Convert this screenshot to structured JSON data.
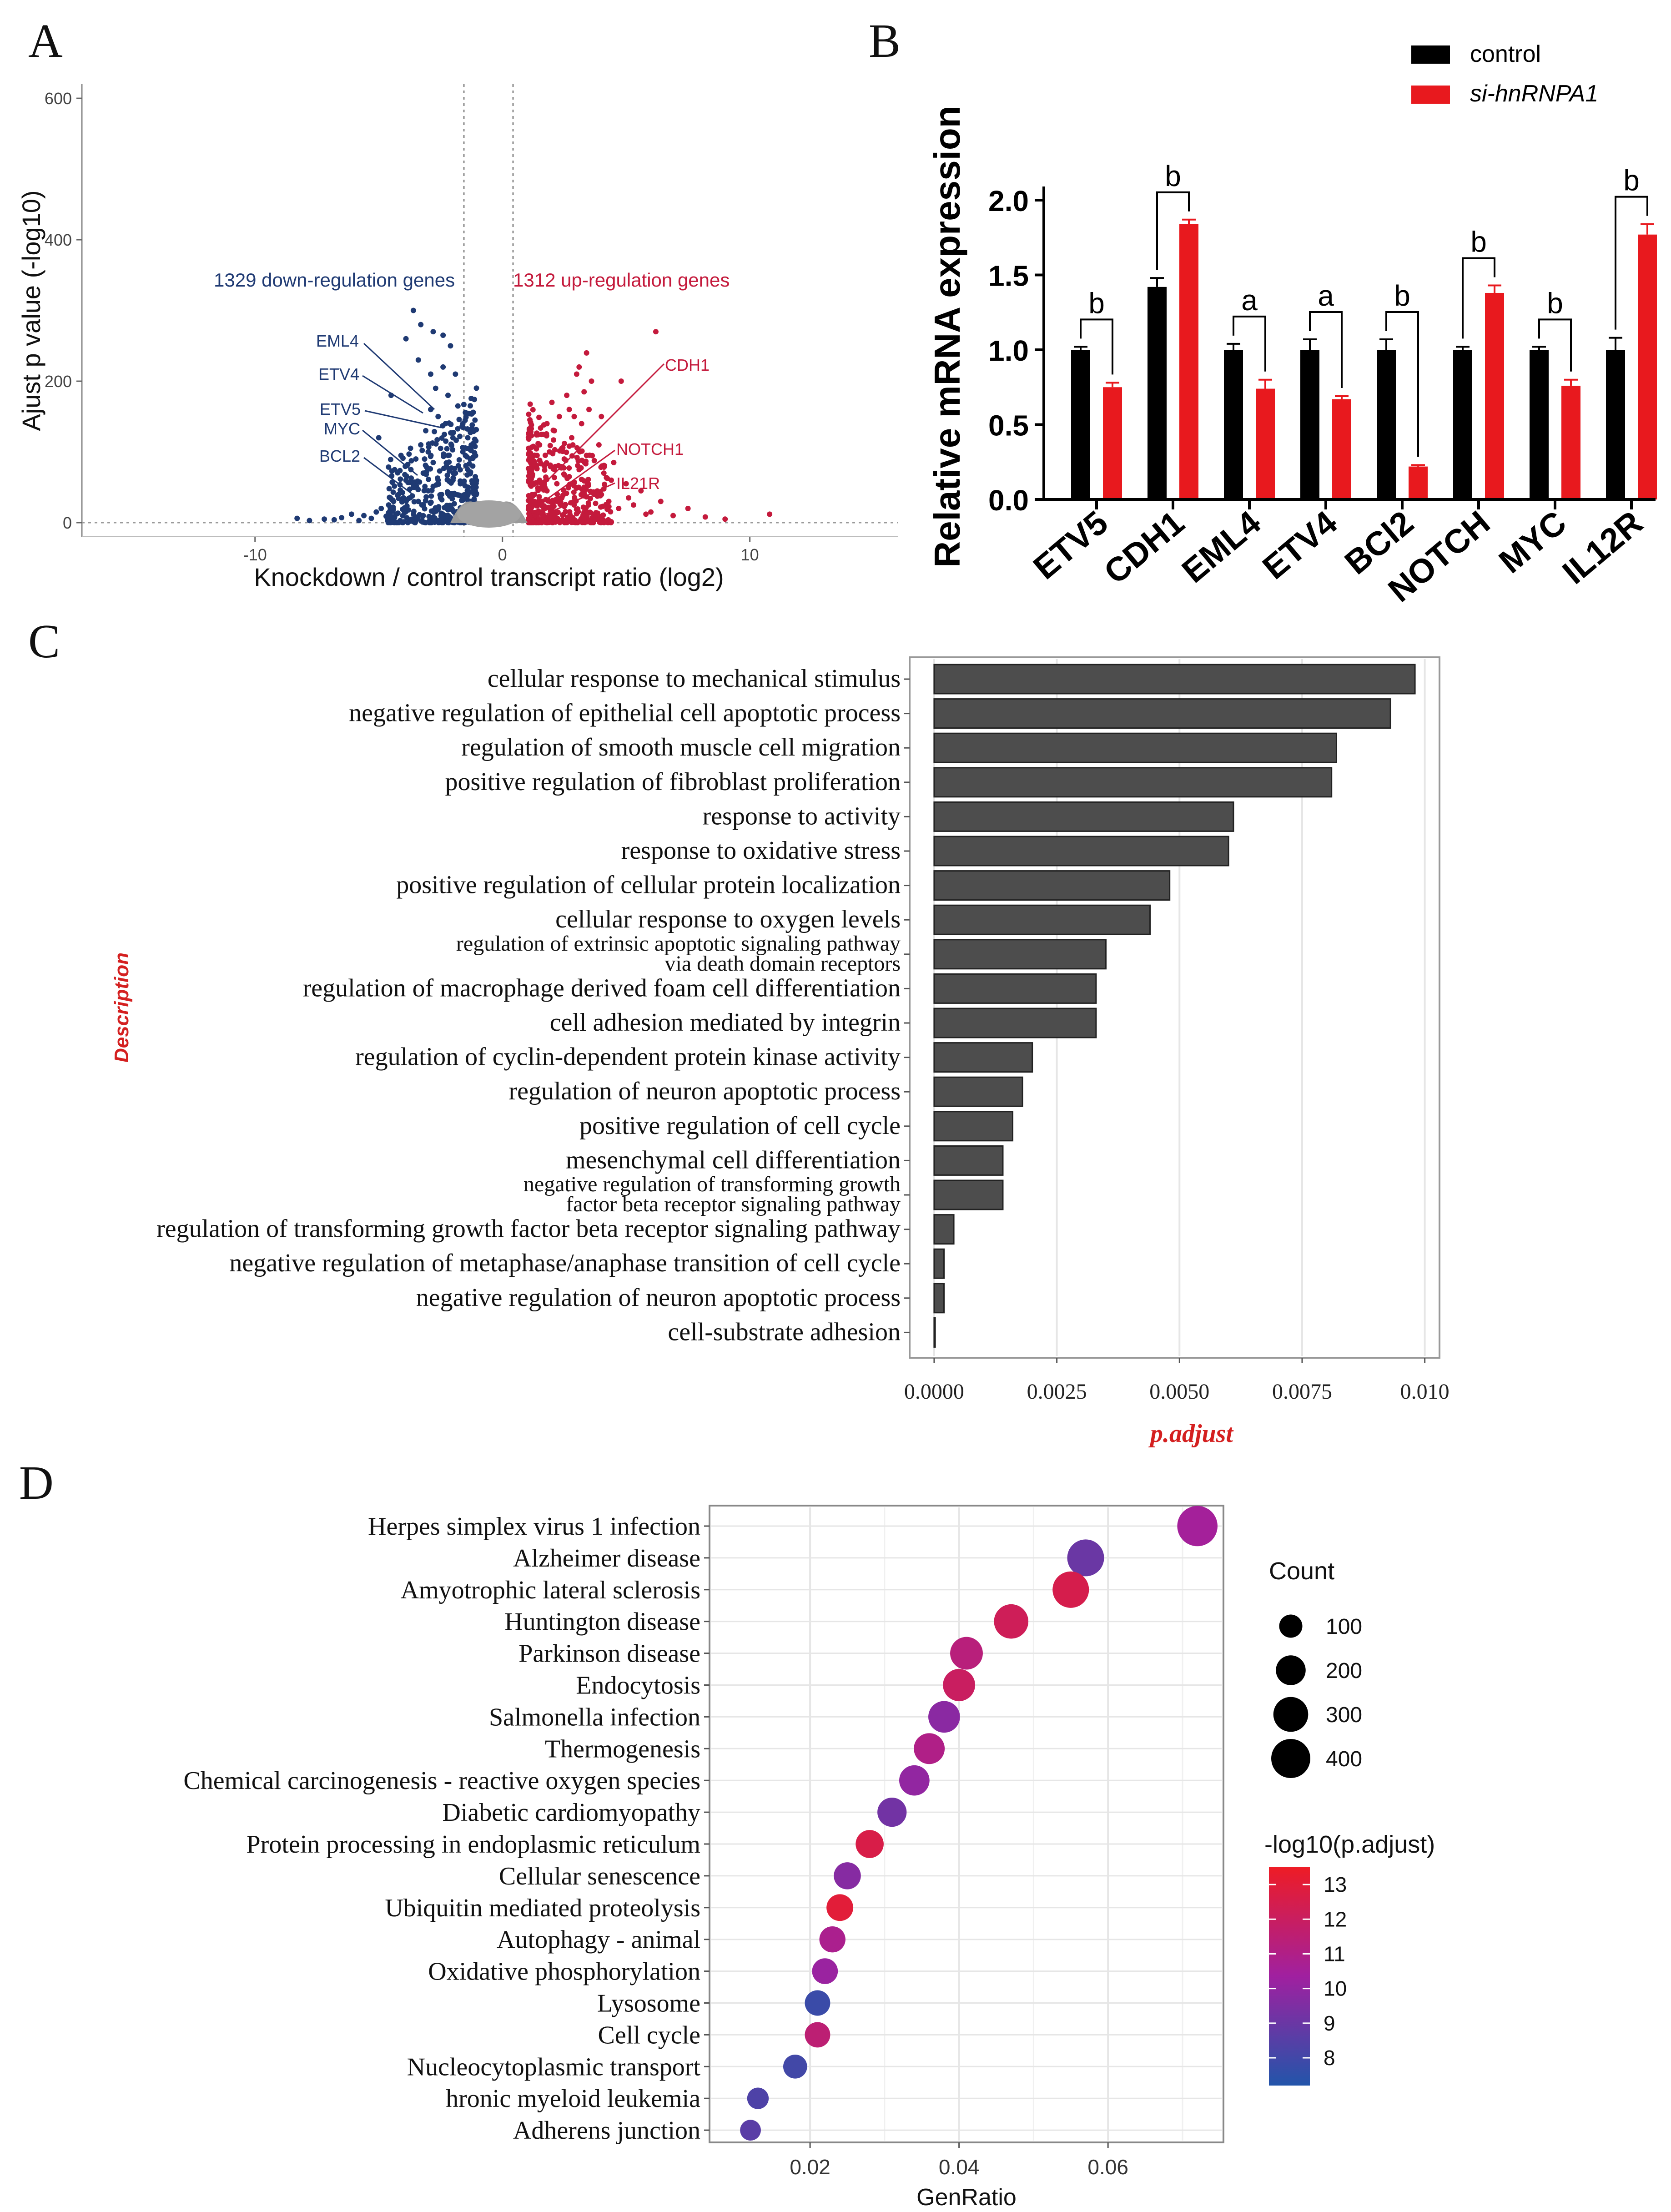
{
  "colors": {
    "down": "#1f3a73",
    "up": "#c41a3c",
    "control_bar": "#000000",
    "si_bar": "#e8191e",
    "go_bar": "#4d4d4d",
    "desc_label": "#d42020",
    "grid": "#e6e6e6",
    "scale_high": "#ee1c25",
    "scale_mid": "#a020a0",
    "scale_low": "#2255aa"
  },
  "chart_data": [
    {
      "panel": "A",
      "type": "scatter",
      "panel_label": "A",
      "xlabel": "Knockdown / control transcript ratio (log2)",
      "ylabel": "Ajust p value (-log10)",
      "xlim": [
        -17,
        16
      ],
      "ylim": [
        0,
        620
      ],
      "x_ticks": [
        -10,
        0,
        10
      ],
      "y_ticks": [
        0,
        200,
        400,
        600
      ],
      "x_tick_labels": [
        "-10",
        "0",
        "10"
      ],
      "y_tick_labels": [
        "0",
        "200",
        "400",
        "600"
      ],
      "threshold_x": [
        -1,
        1
      ],
      "down_label": "1329 down-regulation genes",
      "up_label": "1312 up-regulation genes",
      "down_count": 1329,
      "up_count": 1312,
      "down_genes": [
        {
          "name": "EML4",
          "x": -2.3,
          "y": 170
        },
        {
          "name": "ETV4",
          "x": -3.0,
          "y": 165
        },
        {
          "name": "ETV5",
          "x": -2.0,
          "y": 140
        },
        {
          "name": "MYC",
          "x": -3.2,
          "y": 110
        },
        {
          "name": "BCL2",
          "x": -3.5,
          "y": 55
        }
      ],
      "up_genes": [
        {
          "name": "CDH1",
          "x": 2.2,
          "y": 45
        },
        {
          "name": "NOTCH1",
          "x": 2.3,
          "y": 20
        },
        {
          "name": "IL21R",
          "x": 2.0,
          "y": 5
        }
      ],
      "scatter": {
        "down": [
          [
            -7.2,
            5
          ],
          [
            -6.5,
            7
          ],
          [
            -6.1,
            12
          ],
          [
            -5.8,
            3
          ],
          [
            -5.6,
            10
          ],
          [
            -5.3,
            6
          ],
          [
            -5.1,
            15
          ],
          [
            -4.9,
            20
          ],
          [
            -4.7,
            9
          ],
          [
            -4.6,
            25
          ],
          [
            -4.4,
            30
          ],
          [
            -4.3,
            12
          ],
          [
            -4.2,
            40
          ],
          [
            -4.0,
            35
          ],
          [
            -3.9,
            60
          ],
          [
            -3.8,
            18
          ],
          [
            -3.7,
            75
          ],
          [
            -3.6,
            50
          ],
          [
            -3.5,
            90
          ],
          [
            -3.4,
            30
          ],
          [
            -3.3,
            110
          ],
          [
            -3.2,
            70
          ],
          [
            -3.1,
            130
          ],
          [
            -3.0,
            45
          ],
          [
            -2.9,
            160
          ],
          [
            -2.8,
            85
          ],
          [
            -2.7,
            190
          ],
          [
            -2.6,
            60
          ],
          [
            -2.5,
            105
          ],
          [
            -2.4,
            220
          ],
          [
            -2.3,
            140
          ],
          [
            -2.2,
            95
          ],
          [
            -2.1,
            250
          ],
          [
            -2.0,
            120
          ],
          [
            -1.9,
            70
          ],
          [
            -1.8,
            165
          ],
          [
            -1.7,
            55
          ],
          [
            -1.6,
            100
          ],
          [
            -1.5,
            40
          ],
          [
            -1.4,
            75
          ],
          [
            -1.3,
            30
          ],
          [
            -1.2,
            50
          ],
          [
            -1.1,
            20
          ],
          [
            -3.6,
            300
          ],
          [
            -3.3,
            280
          ],
          [
            -2.8,
            270
          ],
          [
            -2.4,
            265
          ],
          [
            -3.9,
            260
          ],
          [
            -4.5,
            180
          ],
          [
            -5.0,
            120
          ],
          [
            -2.2,
            180
          ],
          [
            -1.6,
            140
          ],
          [
            -1.3,
            90
          ],
          [
            -2.9,
            210
          ],
          [
            -3.4,
            230
          ],
          [
            -4.1,
            95
          ],
          [
            -1.9,
            210
          ],
          [
            -2.6,
            150
          ],
          [
            -3.0,
            100
          ],
          [
            -1.4,
            120
          ],
          [
            -1.2,
            80
          ],
          [
            -2.0,
            60
          ],
          [
            -2.5,
            35
          ],
          [
            -3.2,
            25
          ],
          [
            -1.7,
            15
          ],
          [
            -2.3,
            10
          ],
          [
            -1.5,
            5
          ],
          [
            -1.1,
            45
          ],
          [
            -6.8,
            4
          ],
          [
            -7.8,
            3
          ],
          [
            -8.3,
            6
          ]
        ],
        "up": [
          [
            1.1,
            10
          ],
          [
            1.2,
            25
          ],
          [
            1.3,
            40
          ],
          [
            1.4,
            15
          ],
          [
            1.5,
            60
          ],
          [
            1.6,
            30
          ],
          [
            1.7,
            80
          ],
          [
            1.8,
            45
          ],
          [
            1.9,
            100
          ],
          [
            2.0,
            20
          ],
          [
            2.1,
            130
          ],
          [
            2.2,
            55
          ],
          [
            2.3,
            150
          ],
          [
            2.4,
            35
          ],
          [
            2.5,
            90
          ],
          [
            2.6,
            180
          ],
          [
            2.7,
            65
          ],
          [
            2.8,
            120
          ],
          [
            2.9,
            25
          ],
          [
            3.0,
            210
          ],
          [
            3.1,
            75
          ],
          [
            3.2,
            140
          ],
          [
            3.3,
            50
          ],
          [
            3.4,
            95
          ],
          [
            3.5,
            160
          ],
          [
            3.7,
            40
          ],
          [
            3.9,
            110
          ],
          [
            4.1,
            70
          ],
          [
            4.3,
            30
          ],
          [
            4.5,
            85
          ],
          [
            4.7,
            20
          ],
          [
            5.0,
            55
          ],
          [
            5.3,
            25
          ],
          [
            5.6,
            45
          ],
          [
            6.0,
            15
          ],
          [
            6.4,
            30
          ],
          [
            6.9,
            10
          ],
          [
            7.5,
            20
          ],
          [
            8.2,
            8
          ],
          [
            9.0,
            5
          ],
          [
            10.8,
            12
          ],
          [
            3.4,
            240
          ],
          [
            3.1,
            220
          ],
          [
            3.6,
            200
          ],
          [
            4.8,
            200
          ],
          [
            6.2,
            270
          ],
          [
            3.3,
            185
          ],
          [
            2.7,
            160
          ],
          [
            4.0,
            150
          ],
          [
            1.5,
            110
          ],
          [
            1.8,
            140
          ],
          [
            2.4,
            105
          ],
          [
            1.3,
            85
          ],
          [
            2.1,
            75
          ],
          [
            4.4,
            60
          ],
          [
            5.1,
            35
          ],
          [
            5.8,
            12
          ],
          [
            2.9,
            150
          ],
          [
            1.6,
            50
          ],
          [
            1.2,
            65
          ],
          [
            1.4,
            95
          ],
          [
            2.0,
            170
          ]
        ]
      }
    },
    {
      "panel": "B",
      "type": "bar",
      "panel_label": "B",
      "categories": [
        "ETV5",
        "CDH1",
        "EML4",
        "ETV4",
        "BCl2",
        "NOTCH",
        "MYC",
        "IL12R"
      ],
      "series": [
        {
          "name": "control",
          "values": [
            1.0,
            1.42,
            1.0,
            1.0,
            1.0,
            1.0,
            1.0,
            1.0
          ],
          "errors": [
            0.02,
            0.06,
            0.04,
            0.07,
            0.07,
            0.02,
            0.02,
            0.08
          ]
        },
        {
          "name": "si-hnRNPA1",
          "values": [
            0.75,
            1.84,
            0.74,
            0.67,
            0.22,
            1.38,
            0.76,
            1.77
          ],
          "errors": [
            0.03,
            0.03,
            0.06,
            0.02,
            0.01,
            0.05,
            0.04,
            0.07
          ]
        }
      ],
      "significance": [
        "b",
        "b",
        "a",
        "a",
        "b",
        "b",
        "b",
        "b"
      ],
      "ylabel": "Relative mRNA expression",
      "xlabel": "",
      "ylim": [
        0,
        2.0
      ],
      "y_ticks": [
        0.0,
        0.5,
        1.0,
        1.5,
        2.0
      ],
      "y_tick_labels": [
        "0.0",
        "0.5",
        "1.0",
        "1.5",
        "2.0"
      ],
      "legend": [
        "control",
        "si-hnRNPA1"
      ]
    },
    {
      "panel": "C",
      "type": "bar",
      "orientation": "horizontal",
      "panel_label": "C",
      "categories": [
        "cellular response to mechanical stimulus",
        "negative regulation of epithelial cell apoptotic process",
        "regulation of smooth muscle cell migration",
        "positive regulation of fibroblast proliferation",
        "response to activity",
        "response to oxidative stress",
        "positive regulation of cellular protein localization",
        "cellular response to oxygen levels",
        [
          "regulation of extrinsic apoptotic signaling pathway",
          "via death domain receptors"
        ],
        "regulation of macrophage derived foam cell differentiation",
        "cell adhesion mediated by integrin",
        "regulation of cyclin-dependent protein kinase activity",
        "regulation of neuron apoptotic process",
        "positive regulation of cell cycle",
        "mesenchymal cell differentiation",
        [
          "negative regulation of transforming growth",
          "factor beta receptor signaling pathway"
        ],
        "regulation of transforming growth factor beta receptor signaling pathway",
        "negative regulation of metaphase/anaphase transition of cell cycle",
        "negative regulation of neuron apoptotic process",
        "cell-substrate adhesion"
      ],
      "values": [
        0.0098,
        0.0093,
        0.0082,
        0.0081,
        0.0061,
        0.006,
        0.0048,
        0.0044,
        0.0035,
        0.0033,
        0.0033,
        0.002,
        0.0018,
        0.0016,
        0.0014,
        0.0014,
        0.0004,
        0.0002,
        0.0002,
        2e-05
      ],
      "xlabel": "p.adjust",
      "ylabel": "Description",
      "xlim": [
        -0.0005,
        0.0103
      ],
      "x_ticks": [
        0.0,
        0.0025,
        0.005,
        0.0075,
        0.01
      ],
      "x_tick_labels": [
        "0.0000",
        "0.0025",
        "0.0050",
        "0.0075",
        "0.010"
      ]
    },
    {
      "panel": "D",
      "type": "scatter",
      "subtype": "dot",
      "panel_label": "D",
      "categories": [
        "Herpes simplex virus 1 infection",
        "Alzheimer disease",
        "Amyotrophic lateral sclerosis",
        "Huntington disease",
        "Parkinson disease",
        "Endocytosis",
        "Salmonella infection",
        "Thermogenesis",
        "Chemical carcinogenesis - reactive oxygen species",
        "Diabetic cardiomyopathy",
        "Protein processing in endoplasmic reticulum",
        "Cellular senescence",
        "Ubiquitin mediated proteolysis",
        "Autophagy - animal",
        "Oxidative phosphorylation",
        "Lysosome",
        "Cell cycle",
        "Nucleocytoplasmic transport",
        "hronic myeloid leukemia",
        "Adherens junction"
      ],
      "gene_ratio": [
        0.072,
        0.057,
        0.055,
        0.047,
        0.041,
        0.04,
        0.038,
        0.036,
        0.034,
        0.031,
        0.028,
        0.025,
        0.024,
        0.023,
        0.022,
        0.021,
        0.021,
        0.018,
        0.013,
        0.012
      ],
      "count": [
        430,
        345,
        335,
        290,
        255,
        245,
        235,
        220,
        210,
        190,
        170,
        155,
        150,
        140,
        135,
        130,
        130,
        110,
        80,
        72
      ],
      "neg_log10_padj": [
        10.5,
        9.0,
        12.5,
        12.2,
        11.3,
        12.0,
        9.8,
        11.0,
        10.0,
        9.2,
        12.6,
        9.7,
        13.0,
        10.8,
        10.2,
        7.8,
        11.5,
        8.0,
        8.3,
        8.6
      ],
      "xlabel": "GenRatio",
      "ylabel": "",
      "xlim": [
        0.0065,
        0.0755
      ],
      "x_ticks": [
        0.02,
        0.04,
        0.06
      ],
      "x_tick_labels": [
        "0.02",
        "0.04",
        "0.06"
      ],
      "size_legend": {
        "title": "Count",
        "values": [
          100,
          200,
          300,
          400
        ],
        "labels": [
          "100",
          "200",
          "300",
          "400"
        ]
      },
      "color_legend": {
        "title": "-log10(p.adjust)",
        "range": [
          7.2,
          13.5
        ],
        "ticks": [
          8,
          9,
          10,
          11,
          12,
          13
        ],
        "labels": [
          "8",
          "9",
          "10",
          "11",
          "12",
          "13"
        ]
      }
    }
  ]
}
